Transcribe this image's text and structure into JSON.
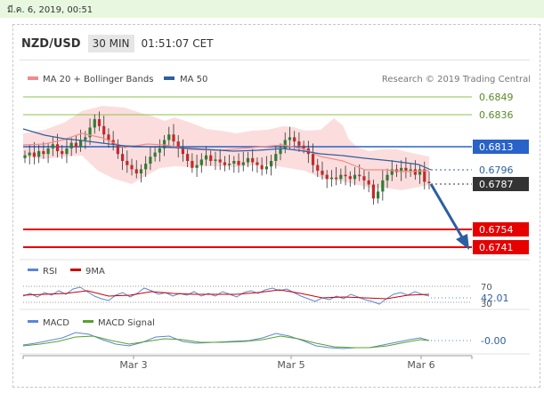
{
  "date_bar": "มี.ค. 6, 2019, 00:51",
  "header": {
    "pair": "NZD/USD",
    "timeframe": "30 MIN",
    "time": "01:51:07 CET"
  },
  "legend": {
    "ma20": "MA 20 + Bollinger Bands",
    "ma50": "MA 50",
    "credit": "Research © 2019 Trading Central",
    "rsi": "RSI",
    "rsi_ma": "9MA",
    "macd": "MACD",
    "macd_signal": "MACD Signal"
  },
  "colors": {
    "green_level": "#8bc34a",
    "blue_level": "#2962c8",
    "red_level": "#e60000",
    "candle_up": "#2e7d32",
    "candle_down": "#c62828",
    "band_fill": "#fcd9d9",
    "arrow": "#2c5ea3",
    "ma20": "#f28b8b",
    "ma50": "#2f5f9e",
    "rsi": "#5b86d6",
    "rsi_ma": "#cc0000",
    "macd": "#5b86d6",
    "macd_signal": "#5aa02c"
  },
  "chart_data": [
    {
      "type": "candlestick",
      "x_ticks": [
        "Mar 3",
        "Mar 5",
        "Mar 6"
      ],
      "ylim": [
        0.673,
        0.6858
      ],
      "levels": [
        {
          "value": 0.6849,
          "label": "0.6849",
          "kind": "resistance"
        },
        {
          "value": 0.6836,
          "label": "0.6836",
          "kind": "resistance"
        },
        {
          "value": 0.6813,
          "label": "0.6813",
          "kind": "pivot"
        },
        {
          "value": 0.6754,
          "label": "0.6754",
          "kind": "support"
        },
        {
          "value": 0.6741,
          "label": "0.6741",
          "kind": "support"
        }
      ],
      "price_markers": [
        {
          "value": 0.6796,
          "label": "0.6796",
          "series": "MA 50"
        },
        {
          "value": 0.6787,
          "label": "0.6787",
          "series": "last"
        }
      ],
      "closes": [
        0.6807,
        0.6809,
        0.6806,
        0.681,
        0.6808,
        0.6812,
        0.6815,
        0.681,
        0.6808,
        0.6812,
        0.6816,
        0.6813,
        0.6818,
        0.682,
        0.6827,
        0.6833,
        0.6828,
        0.6822,
        0.6818,
        0.6815,
        0.6808,
        0.6803,
        0.68,
        0.6797,
        0.6794,
        0.6797,
        0.6801,
        0.6806,
        0.6809,
        0.6812,
        0.6818,
        0.6822,
        0.6817,
        0.6812,
        0.6808,
        0.6803,
        0.6798,
        0.68,
        0.6804,
        0.6807,
        0.6803,
        0.6804,
        0.6802,
        0.68,
        0.6801,
        0.6803,
        0.68,
        0.6802,
        0.6805,
        0.6802,
        0.68,
        0.6797,
        0.6799,
        0.6803,
        0.6808,
        0.6812,
        0.6818,
        0.682,
        0.6817,
        0.6814,
        0.6812,
        0.6808,
        0.68,
        0.6796,
        0.6793,
        0.679,
        0.6791,
        0.679,
        0.6793,
        0.6792,
        0.679,
        0.6793,
        0.6792,
        0.6789,
        0.6786,
        0.6776,
        0.6781,
        0.6789,
        0.6793,
        0.6797,
        0.6795,
        0.6798,
        0.6796,
        0.6797,
        0.6793,
        0.6797,
        0.6788,
        0.6787
      ],
      "arrow": {
        "from": 0.6787,
        "to": 0.6741
      }
    },
    {
      "type": "line",
      "name": "RSI",
      "guides": [
        70,
        30
      ],
      "last_value": "42.01",
      "series": [
        {
          "name": "RSI"
        },
        {
          "name": "9MA"
        }
      ]
    },
    {
      "type": "line",
      "name": "MACD",
      "last_value": "-0.00",
      "series": [
        {
          "name": "MACD"
        },
        {
          "name": "MACD Signal"
        }
      ]
    }
  ]
}
